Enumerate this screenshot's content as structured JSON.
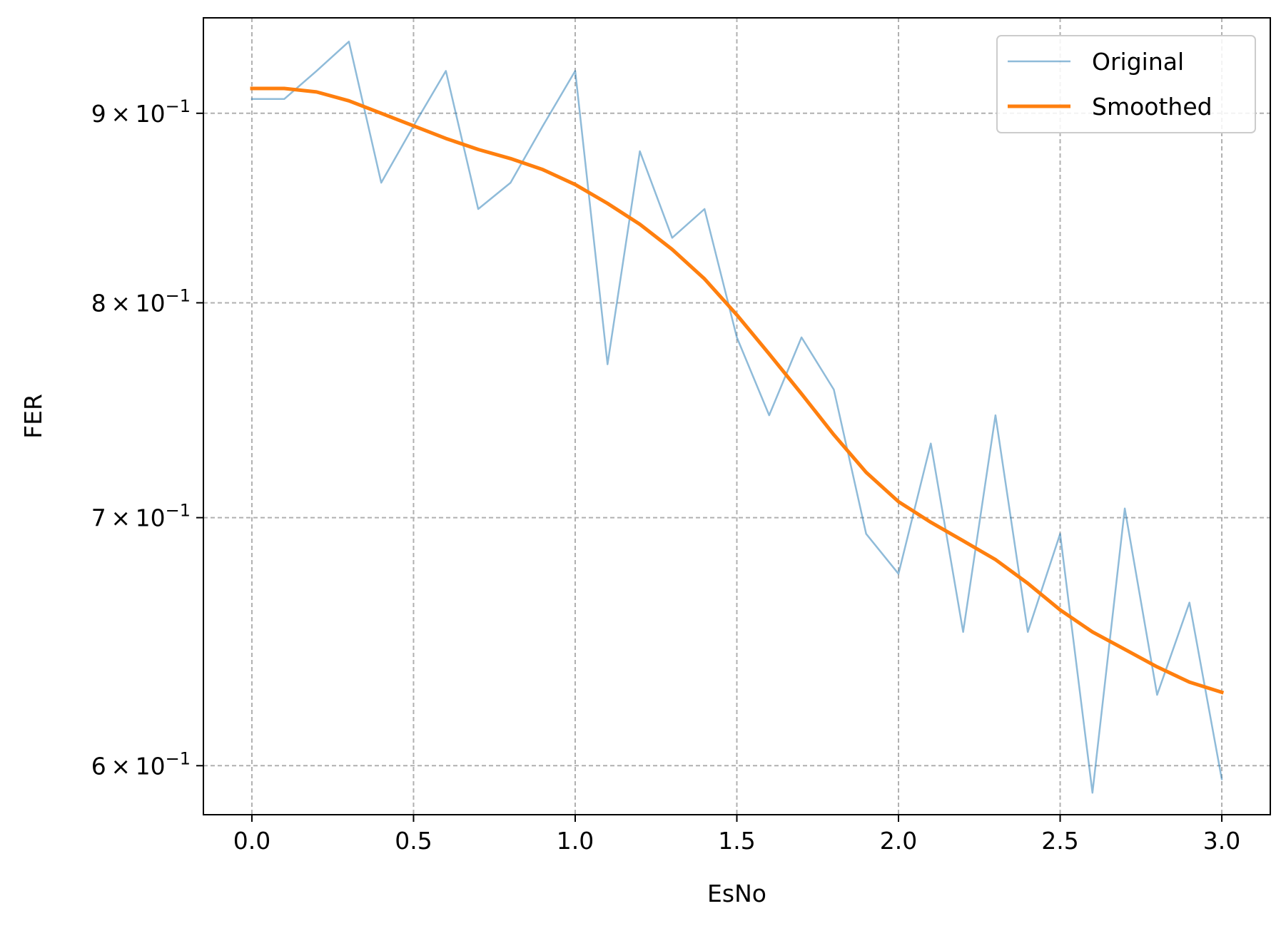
{
  "chart_data": {
    "type": "line",
    "xlabel": "EsNo",
    "ylabel": "FER",
    "xlim": [
      -0.15,
      3.15
    ],
    "ylim": [
      0.582,
      0.955
    ],
    "yscale": "log",
    "grid": true,
    "legend_position": "top-right",
    "x_ticks": [
      0.0,
      0.5,
      1.0,
      1.5,
      2.0,
      2.5,
      3.0
    ],
    "x_tick_labels": [
      "0.0",
      "0.5",
      "1.0",
      "1.5",
      "2.0",
      "2.5",
      "3.0"
    ],
    "y_ticks": [
      0.6,
      0.7,
      0.8,
      0.9
    ],
    "y_tick_labels": [
      {
        "mantissa": "6",
        "times": "×",
        "base": "10",
        "exp": "−1"
      },
      {
        "mantissa": "7",
        "times": "×",
        "base": "10",
        "exp": "−1"
      },
      {
        "mantissa": "8",
        "times": "×",
        "base": "10",
        "exp": "−1"
      },
      {
        "mantissa": "9",
        "times": "×",
        "base": "10",
        "exp": "−1"
      }
    ],
    "x": [
      0.0,
      0.1,
      0.2,
      0.3,
      0.4,
      0.5,
      0.6,
      0.7,
      0.8,
      0.9,
      1.0,
      1.1,
      1.2,
      1.3,
      1.4,
      1.5,
      1.6,
      1.7,
      1.8,
      1.9,
      2.0,
      2.1,
      2.2,
      2.3,
      2.4,
      2.5,
      2.6,
      2.7,
      2.8,
      2.9,
      3.0
    ],
    "series": [
      {
        "name": "Original",
        "color": "#1f77b4",
        "opacity": 0.5,
        "values": [
          0.908,
          0.908,
          0.924,
          0.941,
          0.862,
          0.893,
          0.924,
          0.848,
          0.862,
          0.893,
          0.924,
          0.77,
          0.879,
          0.833,
          0.848,
          0.783,
          0.746,
          0.783,
          0.758,
          0.693,
          0.676,
          0.733,
          0.652,
          0.746,
          0.652,
          0.693,
          0.59,
          0.704,
          0.627,
          0.664,
          0.595
        ]
      },
      {
        "name": "Smoothed",
        "color": "#ff7f0e",
        "opacity": 1.0,
        "values": [
          0.914,
          0.914,
          0.912,
          0.907,
          0.9,
          0.893,
          0.886,
          0.88,
          0.875,
          0.869,
          0.861,
          0.851,
          0.84,
          0.827,
          0.812,
          0.794,
          0.775,
          0.756,
          0.737,
          0.72,
          0.707,
          0.698,
          0.69,
          0.682,
          0.672,
          0.661,
          0.652,
          0.645,
          0.638,
          0.632,
          0.628
        ]
      }
    ]
  }
}
